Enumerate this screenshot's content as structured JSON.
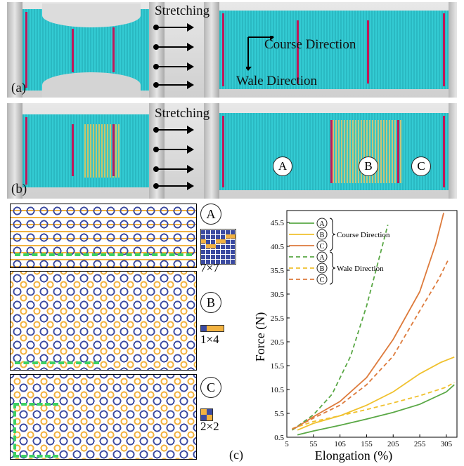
{
  "photo_a": {
    "panel_label": "(a)",
    "stretch_label": "Stretching",
    "course_label": "Course Direction",
    "wale_label": "Wale Direction"
  },
  "photo_b": {
    "panel_label": "(b)",
    "stretch_label": "Stretching",
    "regions": [
      "A",
      "B",
      "C"
    ]
  },
  "patterns": [
    {
      "id": "A",
      "size_label": "7×7"
    },
    {
      "id": "B",
      "size_label": "1×4"
    },
    {
      "id": "C",
      "size_label": "2×2"
    }
  ],
  "caption_c": "(c)",
  "colors": {
    "fabric": "#2ab9c2",
    "blue_yarn": "#3b4aa0",
    "orange_yarn": "#f2b240",
    "green_dash": "#3cd163",
    "course_green": "#5aa846",
    "course_yellow": "#f0c12e",
    "course_orange": "#dd7a3b"
  },
  "chart_data": {
    "type": "line",
    "xlabel": "Elongation (%)",
    "ylabel": "Force (N)",
    "xlim": [
      5,
      325
    ],
    "ylim": [
      0.5,
      48
    ],
    "xticks": [
      "5",
      "55",
      "105",
      "155",
      "205",
      "255",
      "305"
    ],
    "yticks": [
      "0.5",
      "5.5",
      "10.5",
      "15.5",
      "20.5",
      "25.5",
      "30.5",
      "35.5",
      "40.5",
      "45.5"
    ],
    "legend_groups": [
      "Course Direction",
      "Wale Direction"
    ],
    "legend_entries": [
      "A",
      "B",
      "C",
      "A",
      "B",
      "C"
    ],
    "series": [
      {
        "name": "A",
        "group": "Course Direction",
        "style": "solid",
        "color": "#5aa846",
        "x": [
          25,
          55,
          105,
          155,
          205,
          255,
          305,
          320
        ],
        "y": [
          1.0,
          1.8,
          3.0,
          4.3,
          5.7,
          7.4,
          10.0,
          11.5
        ]
      },
      {
        "name": "B",
        "group": "Course Direction",
        "style": "solid",
        "color": "#f0c12e",
        "x": [
          25,
          55,
          105,
          155,
          205,
          255,
          295,
          320
        ],
        "y": [
          2.0,
          3.4,
          5.0,
          7.2,
          10.0,
          13.8,
          16.2,
          17.3
        ]
      },
      {
        "name": "C",
        "group": "Course Direction",
        "style": "solid",
        "color": "#dd7a3b",
        "x": [
          15,
          55,
          105,
          155,
          205,
          255,
          285,
          300
        ],
        "y": [
          2.0,
          4.8,
          8.0,
          13.0,
          21.0,
          31.0,
          41.0,
          47.5
        ]
      },
      {
        "name": "A",
        "group": "Wale Direction",
        "style": "dashed",
        "color": "#5aa846",
        "x": [
          15,
          55,
          90,
          125,
          155,
          175,
          195
        ],
        "y": [
          2.0,
          5.2,
          9.5,
          17.5,
          28.0,
          36.5,
          45.0
        ]
      },
      {
        "name": "B",
        "group": "Wale Direction",
        "style": "dashed",
        "color": "#f0c12e",
        "x": [
          15,
          55,
          105,
          155,
          205,
          255,
          305,
          320
        ],
        "y": [
          2.3,
          3.8,
          5.0,
          6.3,
          7.7,
          9.2,
          11.0,
          12.0
        ]
      },
      {
        "name": "C",
        "group": "Wale Direction",
        "style": "dashed",
        "color": "#dd7a3b",
        "x": [
          15,
          55,
          105,
          155,
          205,
          255,
          290,
          310
        ],
        "y": [
          2.2,
          4.5,
          7.2,
          11.5,
          17.5,
          27.0,
          33.5,
          38.0
        ]
      }
    ]
  }
}
